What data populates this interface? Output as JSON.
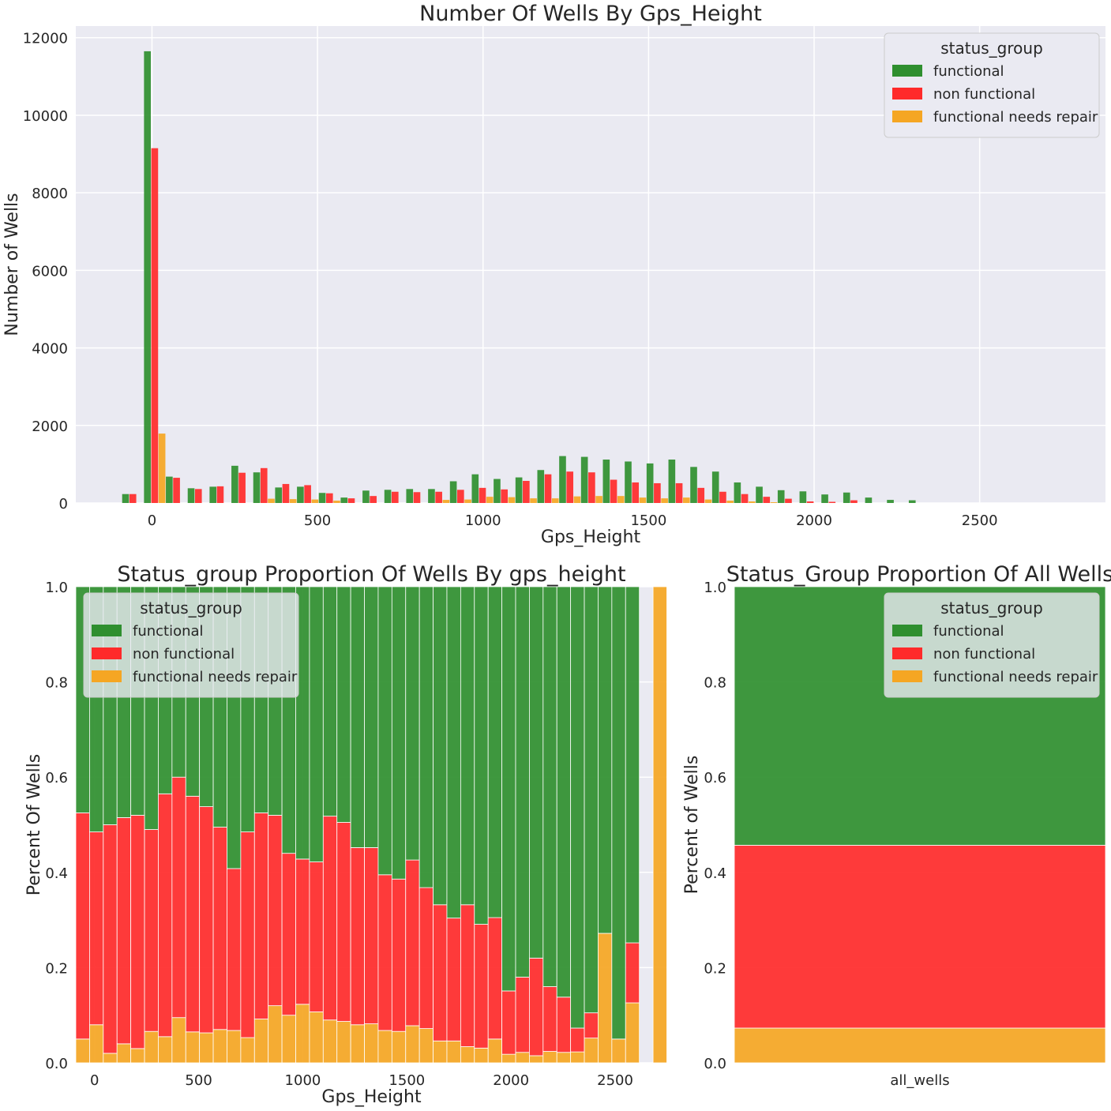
{
  "colors": {
    "functional": "#2f8f2f",
    "non_functional": "#ff2a2a",
    "functional_needs_repair": "#f5a623",
    "panel_bg": "#eaeaf2",
    "grid": "#ffffff"
  },
  "chart_data": [
    {
      "type": "bar",
      "title": "Number Of Wells By Gps_Height",
      "xlabel": "Gps_Height",
      "ylabel": "Number of Wells",
      "xlim": [
        -230,
        2880
      ],
      "ylim": [
        0,
        12300
      ],
      "xticks": [
        "0",
        "500",
        "1000",
        "1500",
        "2000",
        "2500"
      ],
      "xtick_values": [
        0,
        500,
        1000,
        1500,
        2000,
        2500
      ],
      "yticks": [
        "0",
        "2000",
        "4000",
        "6000",
        "8000",
        "10000",
        "12000"
      ],
      "ytick_values": [
        0,
        2000,
        4000,
        6000,
        8000,
        10000,
        12000
      ],
      "grid": true,
      "legend_position": "top-right",
      "legend_title": "status_group",
      "bin_width": 66,
      "bin_starts": [
        -90,
        -24,
        42,
        108,
        174,
        240,
        306,
        372,
        438,
        504,
        570,
        636,
        702,
        768,
        834,
        900,
        966,
        1032,
        1098,
        1164,
        1230,
        1296,
        1362,
        1428,
        1494,
        1560,
        1626,
        1692,
        1758,
        1824,
        1890,
        1956,
        2022,
        2088,
        2154,
        2220,
        2286
      ],
      "series": [
        {
          "name": "functional",
          "values": [
            230,
            11650,
            680,
            380,
            420,
            960,
            790,
            400,
            420,
            260,
            140,
            320,
            340,
            360,
            360,
            560,
            740,
            620,
            660,
            850,
            1210,
            1190,
            1120,
            1070,
            1020,
            1120,
            930,
            810,
            530,
            420,
            330,
            300,
            220,
            270,
            140,
            80,
            70
          ]
        },
        {
          "name": "non functional",
          "values": [
            230,
            9150,
            650,
            360,
            430,
            780,
            900,
            490,
            460,
            250,
            120,
            180,
            290,
            280,
            290,
            340,
            390,
            350,
            570,
            740,
            810,
            790,
            600,
            530,
            510,
            510,
            390,
            290,
            230,
            160,
            110,
            40,
            30,
            70,
            0,
            0,
            0
          ]
        },
        {
          "name": "functional needs repair",
          "values": [
            0,
            1790,
            0,
            0,
            0,
            0,
            110,
            100,
            90,
            60,
            0,
            0,
            0,
            0,
            80,
            90,
            160,
            150,
            120,
            120,
            170,
            180,
            180,
            140,
            120,
            140,
            90,
            60,
            40,
            20,
            0,
            0,
            0,
            0,
            0,
            0,
            0
          ]
        }
      ]
    },
    {
      "type": "bar",
      "stacked": true,
      "title": "Status_group Proportion Of Wells By gps_height",
      "xlabel": "Gps_Height",
      "ylabel": "Percent Of Wells",
      "xlim": [
        -90,
        2750
      ],
      "ylim": [
        0,
        1
      ],
      "xticks": [
        "0",
        "500",
        "1000",
        "1500",
        "2000",
        "2500"
      ],
      "xtick_values": [
        0,
        500,
        1000,
        1500,
        2000,
        2500
      ],
      "yticks": [
        "0.0",
        "0.2",
        "0.4",
        "0.6",
        "0.8",
        "1.0"
      ],
      "ytick_values": [
        0,
        0.2,
        0.4,
        0.6,
        0.8,
        1.0
      ],
      "grid": true,
      "legend_position": "top-left",
      "legend_title": "status_group",
      "bin_width": 66,
      "bin_starts": [
        -90,
        -24,
        42,
        108,
        174,
        240,
        306,
        372,
        438,
        504,
        570,
        636,
        702,
        768,
        834,
        900,
        966,
        1032,
        1098,
        1164,
        1230,
        1296,
        1362,
        1428,
        1494,
        1560,
        1626,
        1692,
        1758,
        1824,
        1890,
        1956,
        2022,
        2088,
        2154,
        2220,
        2286,
        2352,
        2418,
        2484,
        2550,
        2616,
        2682
      ],
      "series": [
        {
          "name": "functional needs repair",
          "values": [
            0.05,
            0.08,
            0.02,
            0.04,
            0.03,
            0.066,
            0.055,
            0.095,
            0.065,
            0.063,
            0.07,
            0.068,
            0.053,
            0.092,
            0.12,
            0.1,
            0.123,
            0.107,
            0.09,
            0.087,
            0.08,
            0.082,
            0.068,
            0.066,
            0.078,
            0.072,
            0.046,
            0.046,
            0.034,
            0.031,
            0.05,
            0.018,
            0.022,
            0.015,
            0.024,
            0.022,
            0.023,
            0.052,
            0.272,
            0.05,
            0.126,
            0,
            1.0
          ]
        },
        {
          "name": "non functional",
          "values": [
            0.475,
            0.405,
            0.48,
            0.475,
            0.49,
            0.424,
            0.51,
            0.505,
            0.495,
            0.475,
            0.425,
            0.34,
            0.432,
            0.433,
            0.4,
            0.34,
            0.305,
            0.315,
            0.428,
            0.418,
            0.372,
            0.37,
            0.327,
            0.32,
            0.348,
            0.296,
            0.286,
            0.258,
            0.298,
            0.26,
            0.255,
            0.133,
            0.158,
            0.205,
            0.136,
            0.116,
            0.05,
            0.053,
            0,
            0,
            0.126,
            0,
            0
          ]
        },
        {
          "name": "functional",
          "values": [
            0.475,
            0.515,
            0.5,
            0.485,
            0.48,
            0.51,
            0.435,
            0.4,
            0.44,
            0.462,
            0.505,
            0.592,
            0.515,
            0.475,
            0.48,
            0.56,
            0.572,
            0.578,
            0.482,
            0.495,
            0.548,
            0.548,
            0.605,
            0.614,
            0.574,
            0.632,
            0.668,
            0.696,
            0.668,
            0.709,
            0.695,
            0.849,
            0.82,
            0.78,
            0.84,
            0.862,
            0.927,
            0.895,
            0.728,
            0.95,
            0.748,
            0,
            0
          ]
        }
      ]
    },
    {
      "type": "bar",
      "stacked": true,
      "title": "Status_Group Proportion Of All Wells",
      "xlabel": "",
      "ylabel": "Percent of Wells",
      "categories": [
        "all_wells"
      ],
      "ylim": [
        0,
        1
      ],
      "yticks": [
        "0.0",
        "0.2",
        "0.4",
        "0.6",
        "0.8",
        "1.0"
      ],
      "ytick_values": [
        0,
        0.2,
        0.4,
        0.6,
        0.8,
        1.0
      ],
      "grid": true,
      "legend_position": "top-right",
      "legend_title": "status_group",
      "series": [
        {
          "name": "functional needs repair",
          "values": [
            0.073
          ]
        },
        {
          "name": "non functional",
          "values": [
            0.384
          ]
        },
        {
          "name": "functional",
          "values": [
            0.543
          ]
        }
      ]
    }
  ]
}
